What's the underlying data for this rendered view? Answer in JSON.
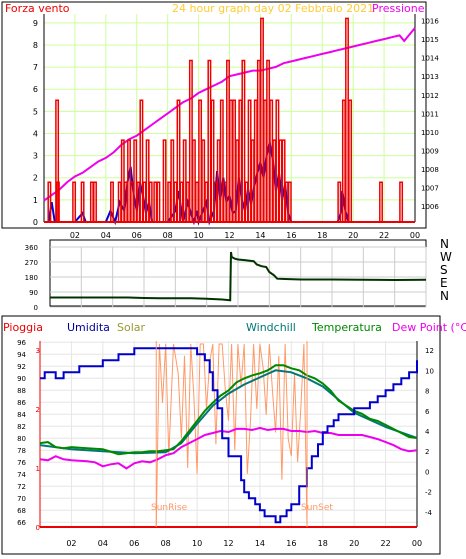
{
  "page": {
    "subtitle": "24 hour graph day   02 Febbraio 2021"
  },
  "wind_panel": {
    "left_label": "Forza vento",
    "right_label": "Pressione",
    "chart_data": {
      "type": "line",
      "title": "24 hour graph day   02 Febbraio 2021",
      "x_ticks": [
        "02",
        "04",
        "06",
        "08",
        "10",
        "12",
        "14",
        "16",
        "18",
        "20",
        "22",
        "00"
      ],
      "x_range_hours": [
        0,
        24
      ],
      "left_axis": {
        "label": "Forza vento",
        "ylim": [
          0,
          9.4
        ],
        "ticks": [
          0,
          1,
          2,
          3,
          4,
          5,
          6,
          7,
          8,
          9
        ]
      },
      "right_axis": {
        "label": "Pressione",
        "ylim": [
          1005.15,
          1016.35
        ],
        "ticks": [
          1006,
          1007,
          1008,
          1009,
          1010,
          1011,
          1012,
          1013,
          1014,
          1015,
          1016
        ]
      },
      "series": [
        {
          "axis": "right",
          "color": "#ee00ee",
          "x": [
            0,
            0.5,
            1,
            1.5,
            2,
            2.5,
            3,
            3.5,
            4,
            4.5,
            5,
            5.5,
            6,
            6.5,
            7,
            7.5,
            8,
            8.5,
            9,
            9.5,
            10,
            10.5,
            11,
            11.5,
            12,
            12.5,
            13,
            13.5,
            14,
            14.5,
            15,
            15.5,
            16,
            16.5,
            17,
            17.5,
            18,
            18.5,
            19,
            19.5,
            20,
            20.5,
            21,
            21.5,
            22,
            22.5,
            23,
            23.3,
            23.6,
            24
          ],
          "y": [
            1006.3,
            1006.6,
            1006.9,
            1007.3,
            1007.6,
            1007.8,
            1008.1,
            1008.4,
            1008.6,
            1008.9,
            1009.3,
            1009.6,
            1009.8,
            1010.1,
            1010.4,
            1010.7,
            1011.0,
            1011.3,
            1011.6,
            1011.8,
            1012.1,
            1012.3,
            1012.5,
            1012.7,
            1013.0,
            1013.1,
            1013.2,
            1013.3,
            1013.3,
            1013.4,
            1013.5,
            1013.7,
            1013.8,
            1013.9,
            1014.0,
            1014.1,
            1014.2,
            1014.3,
            1014.4,
            1014.5,
            1014.6,
            1014.7,
            1014.8,
            1014.9,
            1015.0,
            1015.1,
            1015.2,
            1014.9,
            1015.2,
            1015.6
          ]
        },
        {
          "axis": "left",
          "color": "#0000dd",
          "x": [
            0,
            0.3,
            0.5,
            0.7,
            1,
            2,
            2.5,
            2.7,
            3,
            4,
            4.3,
            4.6,
            4.9,
            5.2,
            5.4,
            5.6,
            5.8,
            6,
            6.2,
            6.4,
            6.6,
            6.8,
            7,
            8,
            8.5,
            8.7,
            9,
            9.3,
            9.5,
            9.7,
            9.9,
            10,
            10.5,
            10.7,
            11,
            11.2,
            11.4,
            11.6,
            11.8,
            12,
            12.2,
            12.4,
            12.6,
            12.8,
            13,
            13.2,
            13.4,
            13.6,
            13.8,
            14,
            14.2,
            14.4,
            14.6,
            14.8,
            15,
            15.2,
            15.4,
            15.6,
            15.8,
            16,
            17,
            19,
            19.2,
            19.3,
            19.5,
            19.7,
            20,
            24
          ],
          "y": [
            0,
            0,
            0.9,
            0,
            0,
            0,
            0.4,
            0,
            0,
            0,
            0.5,
            0,
            0.9,
            0.5,
            1.8,
            2.5,
            1.2,
            0.5,
            1.8,
            1.2,
            0.4,
            0.9,
            0,
            0,
            0.5,
            1.4,
            0,
            0.9,
            0.4,
            0,
            0.5,
            0,
            0.9,
            0,
            0.5,
            2.3,
            1.0,
            2.0,
            0.9,
            1.2,
            0.4,
            0.5,
            2.0,
            1.0,
            0.5,
            1.5,
            0.8,
            1.6,
            2.2,
            2.7,
            2.0,
            3.0,
            3.6,
            2.8,
            1.4,
            2.2,
            1.0,
            1.7,
            0.4,
            0,
            0,
            0,
            0.4,
            1.4,
            0.5,
            0,
            0,
            0
          ]
        },
        {
          "axis": "left",
          "color": "#ee0000",
          "style": "gust spikes from 0",
          "peaks_x": [
            0.35,
            0.85,
            0.9,
            1.95,
            2.5,
            3.1,
            3.3,
            4.4,
            4.9,
            5.1,
            5.3,
            5.5,
            5.7,
            5.9,
            6.1,
            6.3,
            6.5,
            6.7,
            6.9,
            7.2,
            7.4,
            7.8,
            8.1,
            8.3,
            8.5,
            8.7,
            8.9,
            9.1,
            9.3,
            9.5,
            9.7,
            9.9,
            10.1,
            10.3,
            10.5,
            10.7,
            10.9,
            11.1,
            11.3,
            11.5,
            11.7,
            11.9,
            12.1,
            12.3,
            12.5,
            12.7,
            12.9,
            13.1,
            13.3,
            13.5,
            13.7,
            13.9,
            14.1,
            14.3,
            14.5,
            14.7,
            14.9,
            15.1,
            15.3,
            15.5,
            15.7,
            15.9,
            19.1,
            19.4,
            19.6,
            19.8,
            21.8,
            23.1
          ],
          "peaks_y": [
            1.8,
            5.5,
            1.8,
            1.8,
            1.8,
            1.8,
            1.8,
            1.8,
            1.8,
            3.7,
            1.8,
            3.7,
            1.8,
            3.7,
            1.8,
            5.5,
            1.8,
            3.7,
            1.8,
            1.8,
            1.8,
            3.7,
            1.8,
            3.7,
            1.8,
            5.5,
            1.8,
            3.7,
            1.8,
            7.3,
            3.7,
            1.8,
            5.5,
            3.7,
            1.8,
            7.3,
            5.5,
            1.8,
            3.7,
            5.5,
            1.8,
            7.3,
            5.5,
            5.5,
            3.7,
            5.5,
            7.3,
            1.8,
            5.5,
            3.7,
            5.5,
            7.3,
            9.2,
            5.5,
            7.3,
            5.5,
            3.7,
            5.5,
            3.7,
            3.7,
            1.8,
            1.8,
            1.8,
            5.5,
            9.2,
            5.5,
            1.8,
            1.8
          ]
        }
      ]
    }
  },
  "dir_panel": {
    "compass": [
      "N",
      "W",
      "S",
      "E",
      "N"
    ],
    "chart_data": {
      "type": "line",
      "x_range_hours": [
        0,
        24
      ],
      "ylim": [
        0,
        360
      ],
      "ticks": [
        0,
        90,
        180,
        270,
        360
      ],
      "series": [
        {
          "color": "#003300",
          "x": [
            0,
            1,
            2,
            3,
            4,
            5,
            6,
            7,
            8,
            9,
            10,
            11,
            11.5,
            11.55,
            11.6,
            11.8,
            12,
            12.5,
            13,
            13.2,
            13.5,
            13.8,
            14,
            14.3,
            14.5,
            15,
            16,
            18,
            20,
            22,
            24
          ],
          "y": [
            57,
            57,
            57,
            57,
            57,
            57,
            54,
            53,
            52,
            52,
            50,
            45,
            40,
            330,
            300,
            290,
            285,
            280,
            275,
            255,
            245,
            240,
            210,
            190,
            170,
            168,
            165,
            165,
            163,
            162,
            163
          ]
        }
      ]
    }
  },
  "bottom_panel": {
    "labels": {
      "pioggia": "Pioggia",
      "umidita": "Umidita",
      "solar": "Solar",
      "windchill": "Windchill",
      "temperatura": "Temperatura",
      "dewpoint": "Dew Point (°C)"
    },
    "annotations": {
      "sunrise": "SunRise",
      "sunset": "SunSet"
    },
    "chart_data": {
      "type": "line",
      "x_range_hours": [
        0,
        24
      ],
      "left_axis_humidity": {
        "ylim": [
          65.2,
          96.2
        ],
        "ticks": [
          66,
          68,
          70,
          72,
          74,
          76,
          78,
          80,
          82,
          84,
          86,
          88,
          90,
          92,
          94,
          96
        ]
      },
      "inner_axis_rain": {
        "ylim": [
          0,
          3.15
        ],
        "ticks": [
          0,
          1,
          2,
          3
        ]
      },
      "right_axis_temp": {
        "ylim": [
          -5.5,
          12.9
        ],
        "ticks": [
          -4,
          -2,
          0,
          2,
          4,
          6,
          8,
          10,
          12
        ]
      },
      "series": [
        {
          "name": "Umidita",
          "axis": "humidity",
          "color": "#0000cc",
          "x": [
            0,
            0.3,
            0.8,
            1,
            1.5,
            2,
            2.5,
            3,
            3.5,
            4,
            4.5,
            5,
            5.5,
            6,
            6.5,
            7,
            7.5,
            8,
            9,
            10,
            10.5,
            10.8,
            11,
            11.3,
            11.6,
            12,
            12.5,
            12.8,
            13,
            13.3,
            13.7,
            14,
            14.3,
            14.7,
            15,
            15.3,
            15.7,
            16,
            16.5,
            17,
            17.3,
            17.7,
            18,
            18.3,
            18.7,
            19,
            19.5,
            20,
            21,
            21.5,
            22,
            22.5,
            23,
            23.5,
            24
          ],
          "y": [
            90,
            91,
            91,
            90,
            91,
            91,
            92,
            92,
            92,
            93,
            93,
            94,
            94,
            95,
            95,
            95,
            95,
            95,
            95,
            94,
            93,
            91,
            88,
            85,
            80,
            77,
            77,
            73,
            71,
            70,
            69,
            68,
            67,
            67,
            66,
            67,
            68,
            69,
            72,
            75,
            77,
            79,
            81,
            82,
            83,
            84,
            84,
            85,
            86,
            87,
            88,
            89,
            90,
            91,
            93
          ]
        },
        {
          "name": "Temperatura",
          "axis": "temp",
          "color": "#008800",
          "x": [
            0,
            0.5,
            1,
            1.5,
            2,
            3,
            4,
            5,
            5.5,
            6,
            6.5,
            7,
            7.5,
            8,
            8.5,
            9,
            9.5,
            10,
            10.5,
            11,
            11.5,
            12,
            12.5,
            13,
            13.5,
            14,
            14.5,
            15,
            15.5,
            16,
            16.5,
            17,
            17.5,
            18,
            18.5,
            19,
            19.5,
            20,
            20.5,
            21,
            21.5,
            22,
            22.5,
            23,
            23.5,
            24
          ],
          "y": [
            2.8,
            2.9,
            2.4,
            2.3,
            2.4,
            2.3,
            2.2,
            1.7,
            1.8,
            1.9,
            1.9,
            2.0,
            2.0,
            2.1,
            2.2,
            3.0,
            4.0,
            5.0,
            6.0,
            6.8,
            7.5,
            8.0,
            8.8,
            9.2,
            9.5,
            9.7,
            10.0,
            10.5,
            10.5,
            10.2,
            10.0,
            9.5,
            9.2,
            8.7,
            8.0,
            7.0,
            6.5,
            6.0,
            5.7,
            5.2,
            5.0,
            4.6,
            4.2,
            3.8,
            3.4,
            3.3
          ]
        },
        {
          "name": "Dew Point (°C)",
          "axis": "temp",
          "color": "#ee00ee",
          "x": [
            0,
            0.5,
            1,
            1.5,
            2,
            3,
            3.5,
            4,
            4.5,
            5,
            5.5,
            6,
            6.5,
            7,
            7.5,
            8,
            8.5,
            9,
            9.5,
            10,
            10.5,
            11,
            11.5,
            12,
            12.5,
            13,
            13.5,
            14,
            14.5,
            15,
            15.5,
            16,
            16.5,
            17,
            17.5,
            18,
            18.5,
            19,
            19.5,
            20,
            20.5,
            21,
            21.5,
            22,
            22.5,
            23,
            23.5,
            24
          ],
          "y": [
            1.2,
            1.1,
            1.5,
            1.2,
            1.1,
            1.0,
            0.9,
            0.5,
            0.7,
            0.8,
            0.3,
            0.8,
            1.0,
            0.9,
            1.2,
            1.6,
            1.8,
            2.4,
            2.8,
            3.2,
            3.6,
            3.8,
            4.0,
            3.9,
            4.2,
            4.2,
            4.1,
            4.3,
            4.1,
            4.2,
            4.2,
            4.0,
            4.0,
            3.9,
            4.0,
            3.8,
            3.8,
            3.6,
            3.6,
            3.6,
            3.6,
            3.4,
            3.2,
            2.9,
            2.6,
            2.2,
            2.0,
            2.1
          ]
        },
        {
          "name": "Windchill",
          "axis": "temp",
          "color": "#007777",
          "x": [
            0,
            2,
            4,
            6,
            8,
            9,
            10,
            11,
            12,
            13,
            14,
            15,
            16,
            17,
            18,
            20,
            22,
            24
          ],
          "y": [
            2.6,
            2.2,
            2.0,
            1.8,
            1.9,
            2.8,
            4.7,
            6.5,
            7.7,
            8.6,
            9.3,
            10.0,
            9.8,
            9.2,
            8.4,
            5.8,
            4.4,
            3.3
          ]
        },
        {
          "name": "Solar",
          "axis": "rain_scaled",
          "color": "#ff9966",
          "x": [
            7.4,
            7.6,
            7.8,
            8.0,
            8.2,
            8.5,
            8.8,
            9.0,
            9.2,
            9.4,
            9.6,
            9.8,
            10.0,
            10.2,
            10.4,
            10.6,
            10.8,
            11.0,
            11.2,
            11.4,
            11.6,
            11.8,
            12.0,
            12.2,
            12.4,
            12.6,
            12.8,
            13.0,
            13.2,
            13.4,
            13.6,
            13.8,
            14.0,
            14.2,
            14.4,
            14.6,
            14.8,
            15.0,
            15.2,
            15.4,
            15.6,
            15.8,
            16.0,
            16.2,
            16.4,
            16.6,
            16.8,
            17.0
          ],
          "y": [
            0,
            3.1,
            2.1,
            3.1,
            1.2,
            3.1,
            2.6,
            1.5,
            2.9,
            1.0,
            3.1,
            2.2,
            0.9,
            3.1,
            3.1,
            2.0,
            2.8,
            3.1,
            1.4,
            3.1,
            3.1,
            2.3,
            1.8,
            3.1,
            1.3,
            3.1,
            2.4,
            3.1,
            0.9,
            1.8,
            3.1,
            2.0,
            3.1,
            2.7,
            1.9,
            3.1,
            2.3,
            1.6,
            2.9,
            0.8,
            3.1,
            1.5,
            1.2,
            2.6,
            1.1,
            2.0,
            3.1,
            0
          ]
        },
        {
          "name": "Pioggia",
          "axis": "rain",
          "color": "#ee0000",
          "x": [
            0,
            24
          ],
          "y": [
            0,
            0
          ]
        }
      ]
    }
  }
}
